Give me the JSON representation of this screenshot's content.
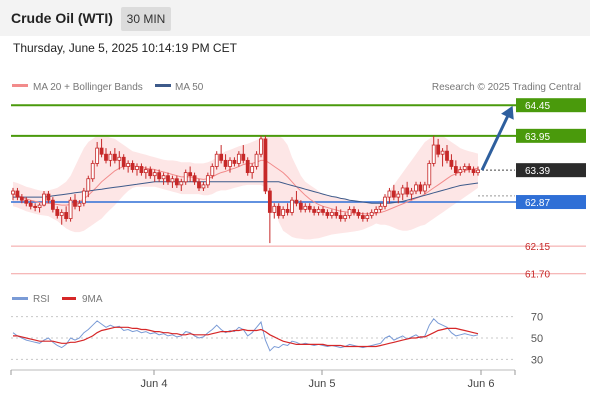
{
  "header": {
    "title": "Crude Oil (WTI)",
    "timeframe": "30 MIN",
    "timestamp": "Thursday, June 5, 2025 10:14:19 PM CET"
  },
  "legend": {
    "ma20_label": "MA 20 + Bollinger Bands",
    "ma50_label": "MA 50",
    "credit": "Research © 2025 Trading Central"
  },
  "rsi_legend": {
    "rsi_label": "RSI",
    "ma9_label": "9MA"
  },
  "colors": {
    "ma20": "#f28b8b",
    "ma50": "#3d5a8a",
    "bollinger_fill": "#fde3e3",
    "candle": "#c62828",
    "resistance": "#4a9a0c",
    "pivot": "#2f6fd6",
    "support": "#f3a1a1",
    "support_text": "#c62828",
    "last_price_bg": "#2b2b2b",
    "arrow": "#2e5f9e",
    "rsi": "#7a9bd6",
    "rsi_ma": "#d62728"
  },
  "chart_data": {
    "type": "candlestick",
    "price_ylim": [
      61.5,
      64.6
    ],
    "levels": [
      {
        "label": "64.45",
        "value": 64.45,
        "kind": "resistance"
      },
      {
        "label": "63.95",
        "value": 63.95,
        "kind": "resistance"
      },
      {
        "label": "63.39",
        "value": 63.39,
        "kind": "last"
      },
      {
        "label": "62.87",
        "value": 62.87,
        "kind": "pivot"
      },
      {
        "label": "62.15",
        "value": 62.15,
        "kind": "support"
      },
      {
        "label": "61.70",
        "value": 61.7,
        "kind": "support"
      }
    ],
    "x_tick_labels": [
      "Jun 4",
      "Jun 5",
      "Jun 6"
    ],
    "candles": [
      [
        63.0,
        63.1,
        62.9,
        63.05
      ],
      [
        63.05,
        63.1,
        62.9,
        62.95
      ],
      [
        62.95,
        63.0,
        62.85,
        62.9
      ],
      [
        62.9,
        62.95,
        62.8,
        62.85
      ],
      [
        62.85,
        62.9,
        62.75,
        62.8
      ],
      [
        62.8,
        62.85,
        62.72,
        62.78
      ],
      [
        62.78,
        62.85,
        62.7,
        62.82
      ],
      [
        62.82,
        63.05,
        62.8,
        63.0
      ],
      [
        63.0,
        63.05,
        62.85,
        62.9
      ],
      [
        62.9,
        62.95,
        62.7,
        62.75
      ],
      [
        62.75,
        62.8,
        62.6,
        62.65
      ],
      [
        62.65,
        62.75,
        62.5,
        62.7
      ],
      [
        62.7,
        62.8,
        62.55,
        62.6
      ],
      [
        62.6,
        62.95,
        62.55,
        62.9
      ],
      [
        62.9,
        63.0,
        62.75,
        62.8
      ],
      [
        62.8,
        62.9,
        62.72,
        62.85
      ],
      [
        62.85,
        63.1,
        62.8,
        63.05
      ],
      [
        63.05,
        63.3,
        62.95,
        63.25
      ],
      [
        63.25,
        63.55,
        63.2,
        63.5
      ],
      [
        63.5,
        63.85,
        63.45,
        63.75
      ],
      [
        63.75,
        63.9,
        63.6,
        63.65
      ],
      [
        63.65,
        63.75,
        63.5,
        63.55
      ],
      [
        63.55,
        63.7,
        63.45,
        63.65
      ],
      [
        63.65,
        63.75,
        63.5,
        63.55
      ],
      [
        63.55,
        63.7,
        63.4,
        63.6
      ],
      [
        63.6,
        63.65,
        63.4,
        63.45
      ],
      [
        63.45,
        63.55,
        63.35,
        63.5
      ],
      [
        63.5,
        63.55,
        63.35,
        63.4
      ],
      [
        63.4,
        63.5,
        63.3,
        63.45
      ],
      [
        63.45,
        63.5,
        63.3,
        63.35
      ],
      [
        63.35,
        63.45,
        63.25,
        63.4
      ],
      [
        63.4,
        63.45,
        63.25,
        63.3
      ],
      [
        63.3,
        63.4,
        63.2,
        63.35
      ],
      [
        63.35,
        63.4,
        63.2,
        63.25
      ],
      [
        63.25,
        63.35,
        63.15,
        63.3
      ],
      [
        63.3,
        63.35,
        63.15,
        63.2
      ],
      [
        63.2,
        63.3,
        63.1,
        63.25
      ],
      [
        63.25,
        63.3,
        63.1,
        63.15
      ],
      [
        63.15,
        63.25,
        63.05,
        63.2
      ],
      [
        63.2,
        63.4,
        63.15,
        63.35
      ],
      [
        63.35,
        63.45,
        63.2,
        63.3
      ],
      [
        63.3,
        63.35,
        63.15,
        63.2
      ],
      [
        63.2,
        63.25,
        63.05,
        63.1
      ],
      [
        63.1,
        63.2,
        63.05,
        63.15
      ],
      [
        63.15,
        63.35,
        63.1,
        63.3
      ],
      [
        63.3,
        63.5,
        63.25,
        63.45
      ],
      [
        63.45,
        63.7,
        63.4,
        63.65
      ],
      [
        63.65,
        63.8,
        63.5,
        63.55
      ],
      [
        63.55,
        63.65,
        63.4,
        63.45
      ],
      [
        63.45,
        63.6,
        63.35,
        63.55
      ],
      [
        63.55,
        63.6,
        63.45,
        63.5
      ],
      [
        63.5,
        63.7,
        63.45,
        63.65
      ],
      [
        63.65,
        63.8,
        63.5,
        63.55
      ],
      [
        63.55,
        63.6,
        63.3,
        63.35
      ],
      [
        63.35,
        63.5,
        63.25,
        63.45
      ],
      [
        63.45,
        63.7,
        63.4,
        63.65
      ],
      [
        63.65,
        63.95,
        63.6,
        63.9
      ],
      [
        63.9,
        63.95,
        63.0,
        63.05
      ],
      [
        63.05,
        63.1,
        62.2,
        62.7
      ],
      [
        62.7,
        62.85,
        62.6,
        62.8
      ],
      [
        62.8,
        62.85,
        62.6,
        62.65
      ],
      [
        62.65,
        62.8,
        62.6,
        62.75
      ],
      [
        62.75,
        62.85,
        62.65,
        62.7
      ],
      [
        62.7,
        62.95,
        62.65,
        62.9
      ],
      [
        62.9,
        63.05,
        62.8,
        62.85
      ],
      [
        62.85,
        62.9,
        62.7,
        62.75
      ],
      [
        62.75,
        62.85,
        62.7,
        62.8
      ],
      [
        62.8,
        62.85,
        62.7,
        62.75
      ],
      [
        62.75,
        62.8,
        62.65,
        62.7
      ],
      [
        62.7,
        62.8,
        62.65,
        62.75
      ],
      [
        62.75,
        62.8,
        62.65,
        62.7
      ],
      [
        62.7,
        62.75,
        62.6,
        62.65
      ],
      [
        62.65,
        62.75,
        62.6,
        62.7
      ],
      [
        62.7,
        62.8,
        62.6,
        62.65
      ],
      [
        62.65,
        62.75,
        62.55,
        62.6
      ],
      [
        62.6,
        62.7,
        62.55,
        62.65
      ],
      [
        62.65,
        62.8,
        62.6,
        62.75
      ],
      [
        62.75,
        62.8,
        62.65,
        62.7
      ],
      [
        62.7,
        62.75,
        62.6,
        62.65
      ],
      [
        62.65,
        62.7,
        62.55,
        62.6
      ],
      [
        62.6,
        62.7,
        62.55,
        62.65
      ],
      [
        62.65,
        62.75,
        62.6,
        62.7
      ],
      [
        62.7,
        62.8,
        62.65,
        62.75
      ],
      [
        62.75,
        62.85,
        62.7,
        62.8
      ],
      [
        62.8,
        63.0,
        62.75,
        62.95
      ],
      [
        62.95,
        63.1,
        62.85,
        63.05
      ],
      [
        63.05,
        63.15,
        62.9,
        62.95
      ],
      [
        62.95,
        63.05,
        62.85,
        63.0
      ],
      [
        63.0,
        63.15,
        62.9,
        63.1
      ],
      [
        63.1,
        63.2,
        62.95,
        63.0
      ],
      [
        63.0,
        63.1,
        62.9,
        63.05
      ],
      [
        63.05,
        63.2,
        63.0,
        63.15
      ],
      [
        63.15,
        63.2,
        63.0,
        63.05
      ],
      [
        63.05,
        63.2,
        63.0,
        63.15
      ],
      [
        63.15,
        63.55,
        63.1,
        63.5
      ],
      [
        63.5,
        63.95,
        63.45,
        63.8
      ],
      [
        63.8,
        63.9,
        63.6,
        63.65
      ],
      [
        63.65,
        63.75,
        63.45,
        63.7
      ],
      [
        63.7,
        63.8,
        63.5,
        63.55
      ],
      [
        63.55,
        63.65,
        63.4,
        63.45
      ],
      [
        63.45,
        63.55,
        63.3,
        63.35
      ],
      [
        63.35,
        63.45,
        63.3,
        63.4
      ],
      [
        63.4,
        63.5,
        63.35,
        63.45
      ],
      [
        63.45,
        63.5,
        63.35,
        63.4
      ],
      [
        63.4,
        63.45,
        63.3,
        63.35
      ],
      [
        63.35,
        63.45,
        63.3,
        63.39
      ]
    ],
    "ma20": [
      63.0,
      62.98,
      62.95,
      62.92,
      62.9,
      62.88,
      62.86,
      62.85,
      62.85,
      62.84,
      62.83,
      62.82,
      62.82,
      62.83,
      62.85,
      62.88,
      62.92,
      62.98,
      63.05,
      63.12,
      63.2,
      63.26,
      63.32,
      63.38,
      63.42,
      63.45,
      63.46,
      63.46,
      63.45,
      63.44,
      63.42,
      63.41,
      63.4,
      63.38,
      63.36,
      63.34,
      63.32,
      63.3,
      63.28,
      63.28,
      63.28,
      63.27,
      63.25,
      63.24,
      63.25,
      63.28,
      63.32,
      63.35,
      63.37,
      63.4,
      63.42,
      63.45,
      63.48,
      63.5,
      63.5,
      63.52,
      63.55,
      63.55,
      63.5,
      63.45,
      63.4,
      63.35,
      63.28,
      63.2,
      63.12,
      63.05,
      62.98,
      62.92,
      62.87,
      62.83,
      62.8,
      62.78,
      62.76,
      62.74,
      62.72,
      62.71,
      62.7,
      62.69,
      62.69,
      62.68,
      62.68,
      62.68,
      62.69,
      62.7,
      62.72,
      62.75,
      62.78,
      62.81,
      62.84,
      62.87,
      62.9,
      62.93,
      62.96,
      63.0,
      63.05,
      63.1,
      63.15,
      63.2,
      63.25,
      63.3,
      63.33,
      63.36,
      63.38,
      63.4,
      63.41,
      63.42
    ],
    "ma50": [
      62.95,
      62.95,
      62.95,
      62.95,
      62.95,
      62.95,
      62.95,
      62.95,
      62.96,
      62.97,
      62.98,
      62.99,
      63.0,
      63.01,
      63.02,
      63.03,
      63.04,
      63.05,
      63.06,
      63.07,
      63.08,
      63.09,
      63.1,
      63.11,
      63.12,
      63.13,
      63.14,
      63.15,
      63.16,
      63.17,
      63.18,
      63.19,
      63.2,
      63.2,
      63.2,
      63.2,
      63.2,
      63.2,
      63.2,
      63.2,
      63.2,
      63.2,
      63.2,
      63.2,
      63.2,
      63.2,
      63.2,
      63.2,
      63.2,
      63.2,
      63.2,
      63.2,
      63.2,
      63.2,
      63.2,
      63.2,
      63.2,
      63.2,
      63.2,
      63.2,
      63.2,
      63.18,
      63.16,
      63.14,
      63.12,
      63.1,
      63.08,
      63.06,
      63.04,
      63.02,
      63.0,
      62.98,
      62.96,
      62.95,
      62.93,
      62.92,
      62.9,
      62.89,
      62.88,
      62.87,
      62.86,
      62.85,
      62.85,
      62.85,
      62.85,
      62.85,
      62.86,
      62.87,
      62.88,
      62.9,
      62.92,
      62.94,
      62.96,
      62.98,
      63.0,
      63.02,
      63.04,
      63.06,
      63.08,
      63.1,
      63.12,
      63.14,
      63.15,
      63.16,
      63.17,
      63.18
    ],
    "bb_upper": [
      63.2,
      63.18,
      63.15,
      63.12,
      63.1,
      63.08,
      63.06,
      63.05,
      63.06,
      63.08,
      63.1,
      63.15,
      63.2,
      63.3,
      63.45,
      63.6,
      63.75,
      63.85,
      63.9,
      63.95,
      63.95,
      63.95,
      63.92,
      63.9,
      63.85,
      63.8,
      63.75,
      63.7,
      63.68,
      63.66,
      63.64,
      63.62,
      63.6,
      63.58,
      63.56,
      63.55,
      63.55,
      63.54,
      63.52,
      63.52,
      63.52,
      63.5,
      63.5,
      63.5,
      63.52,
      63.55,
      63.6,
      63.65,
      63.7,
      63.72,
      63.75,
      63.78,
      63.8,
      63.82,
      63.85,
      63.88,
      63.92,
      63.95,
      63.95,
      63.95,
      63.95,
      63.9,
      63.8,
      63.6,
      63.45,
      63.3,
      63.2,
      63.15,
      63.1,
      63.05,
      63.0,
      62.98,
      62.96,
      62.95,
      62.93,
      62.92,
      62.9,
      62.88,
      62.87,
      62.86,
      62.86,
      62.86,
      62.87,
      62.9,
      62.95,
      63.05,
      63.15,
      63.25,
      63.35,
      63.45,
      63.55,
      63.65,
      63.75,
      63.85,
      63.9,
      63.95,
      63.95,
      63.95,
      63.9,
      63.85,
      63.8,
      63.75,
      63.72,
      63.7,
      63.68,
      63.66
    ],
    "bb_lower": [
      62.8,
      62.78,
      62.75,
      62.72,
      62.7,
      62.68,
      62.66,
      62.65,
      62.64,
      62.6,
      62.56,
      62.5,
      62.44,
      62.4,
      62.38,
      62.38,
      62.4,
      62.45,
      62.5,
      62.55,
      62.6,
      62.68,
      62.75,
      62.82,
      62.9,
      62.98,
      63.05,
      63.1,
      63.12,
      63.12,
      63.12,
      63.12,
      63.12,
      63.1,
      63.08,
      63.06,
      63.04,
      63.02,
      63.0,
      63.0,
      63.0,
      63.0,
      63.0,
      62.98,
      62.98,
      63.0,
      63.04,
      63.06,
      63.06,
      63.08,
      63.1,
      63.12,
      63.14,
      63.15,
      63.15,
      63.15,
      63.15,
      63.1,
      62.95,
      62.8,
      62.55,
      62.4,
      62.35,
      62.3,
      62.28,
      62.27,
      62.26,
      62.26,
      62.27,
      62.28,
      62.3,
      62.32,
      62.34,
      62.35,
      62.36,
      62.37,
      62.38,
      62.39,
      62.4,
      62.42,
      62.45,
      62.48,
      62.52,
      62.5,
      62.5,
      62.48,
      62.45,
      62.42,
      62.4,
      62.4,
      62.42,
      62.45,
      62.48,
      62.5,
      62.55,
      62.6,
      62.65,
      62.7,
      62.75,
      62.8,
      62.85,
      62.9,
      62.95,
      63.0,
      63.05,
      63.1
    ],
    "rsi_ylim": [
      20,
      80
    ],
    "rsi_ticks": [
      70,
      50,
      30
    ],
    "rsi": [
      55,
      52,
      50,
      48,
      47,
      46,
      45,
      48,
      50,
      46,
      43,
      41,
      44,
      50,
      48,
      50,
      55,
      58,
      62,
      66,
      63,
      60,
      62,
      60,
      61,
      57,
      58,
      56,
      57,
      55,
      56,
      54,
      55,
      53,
      54,
      52,
      53,
      51,
      52,
      56,
      55,
      52,
      50,
      51,
      55,
      58,
      62,
      58,
      55,
      57,
      56,
      60,
      58,
      52,
      55,
      60,
      65,
      48,
      38,
      42,
      41,
      44,
      43,
      47,
      46,
      44,
      45,
      44,
      43,
      44,
      43,
      42,
      43,
      42,
      41,
      42,
      44,
      43,
      42,
      41,
      42,
      43,
      44,
      45,
      50,
      52,
      48,
      50,
      52,
      49,
      51,
      53,
      50,
      52,
      62,
      68,
      64,
      62,
      60,
      55,
      52,
      53,
      54,
      53,
      52,
      53
    ],
    "rsi_ma": [
      52,
      52,
      51,
      50,
      49,
      48,
      47,
      47,
      47,
      47,
      46,
      45,
      45,
      46,
      46,
      47,
      48,
      50,
      52,
      55,
      57,
      58,
      59,
      60,
      60,
      60,
      60,
      59,
      59,
      58,
      58,
      57,
      56,
      56,
      55,
      55,
      54,
      54,
      53,
      53,
      54,
      53,
      53,
      53,
      53,
      54,
      55,
      56,
      56,
      56,
      57,
      57,
      58,
      57,
      57,
      57,
      58,
      56,
      53,
      51,
      49,
      47,
      46,
      45,
      44,
      44,
      44,
      44,
      44,
      44,
      44,
      43,
      43,
      43,
      43,
      42,
      42,
      42,
      42,
      42,
      42,
      42,
      42,
      43,
      44,
      45,
      46,
      47,
      48,
      49,
      50,
      50,
      51,
      51,
      53,
      55,
      57,
      58,
      59,
      59,
      59,
      58,
      57,
      56,
      55,
      54
    ]
  }
}
